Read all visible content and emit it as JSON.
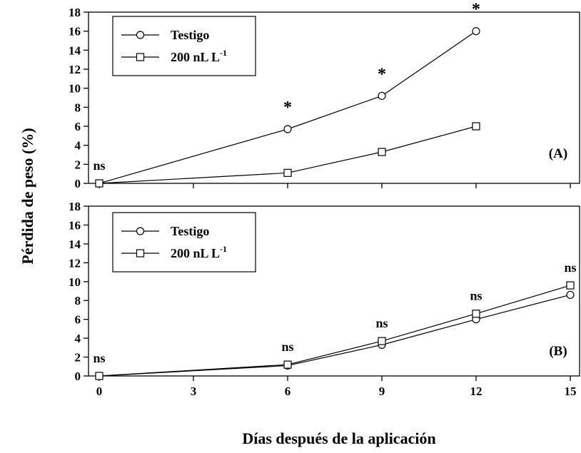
{
  "colors": {
    "axis": "#000000",
    "line": "#000000",
    "marker_fill": "#ffffff",
    "background": "#ffffff"
  },
  "chart_data": [
    {
      "panel": "(A)",
      "type": "line",
      "x": [
        0,
        6,
        9,
        12
      ],
      "xlim": [
        0,
        15
      ],
      "ylim": [
        0,
        18
      ],
      "yticks": [
        0,
        2,
        4,
        6,
        8,
        10,
        12,
        14,
        16,
        18
      ],
      "ylabel": "Pérdida de peso (%)",
      "series": [
        {
          "name": "Testigo",
          "marker": "circle",
          "values": [
            0,
            5.7,
            9.2,
            16.0
          ]
        },
        {
          "name": "200 nL L",
          "name_sup": "-1",
          "marker": "square",
          "values": [
            0,
            1.1,
            3.3,
            6.0
          ]
        }
      ],
      "annotations": [
        {
          "x": 0,
          "y": 0,
          "text": "ns"
        },
        {
          "x": 6,
          "y": 5.7,
          "text": "*"
        },
        {
          "x": 9,
          "y": 9.2,
          "text": "*"
        },
        {
          "x": 12,
          "y": 16.0,
          "text": "*"
        }
      ],
      "legend": "top-left",
      "grid": false
    },
    {
      "panel": "(B)",
      "type": "line",
      "x": [
        0,
        6,
        9,
        12,
        15
      ],
      "xlim": [
        0,
        15
      ],
      "xticks": [
        0,
        3,
        6,
        9,
        12,
        15
      ],
      "xlabel": "Días después de la aplicación",
      "ylim": [
        0,
        18
      ],
      "yticks": [
        0,
        2,
        4,
        6,
        8,
        10,
        12,
        14,
        16,
        18
      ],
      "series": [
        {
          "name": "Testigo",
          "marker": "circle",
          "values": [
            0,
            1.1,
            3.3,
            6.0,
            8.6
          ]
        },
        {
          "name": "200 nL L",
          "name_sup": "-1",
          "marker": "square",
          "values": [
            0,
            1.2,
            3.7,
            6.6,
            9.6
          ]
        }
      ],
      "annotations": [
        {
          "x": 0,
          "y": 0,
          "text": "ns"
        },
        {
          "x": 6,
          "y": 1.2,
          "text": "ns"
        },
        {
          "x": 9,
          "y": 3.7,
          "text": "ns"
        },
        {
          "x": 12,
          "y": 6.6,
          "text": "ns"
        },
        {
          "x": 15,
          "y": 9.6,
          "text": "ns"
        }
      ],
      "legend": "top-left",
      "grid": false
    }
  ]
}
